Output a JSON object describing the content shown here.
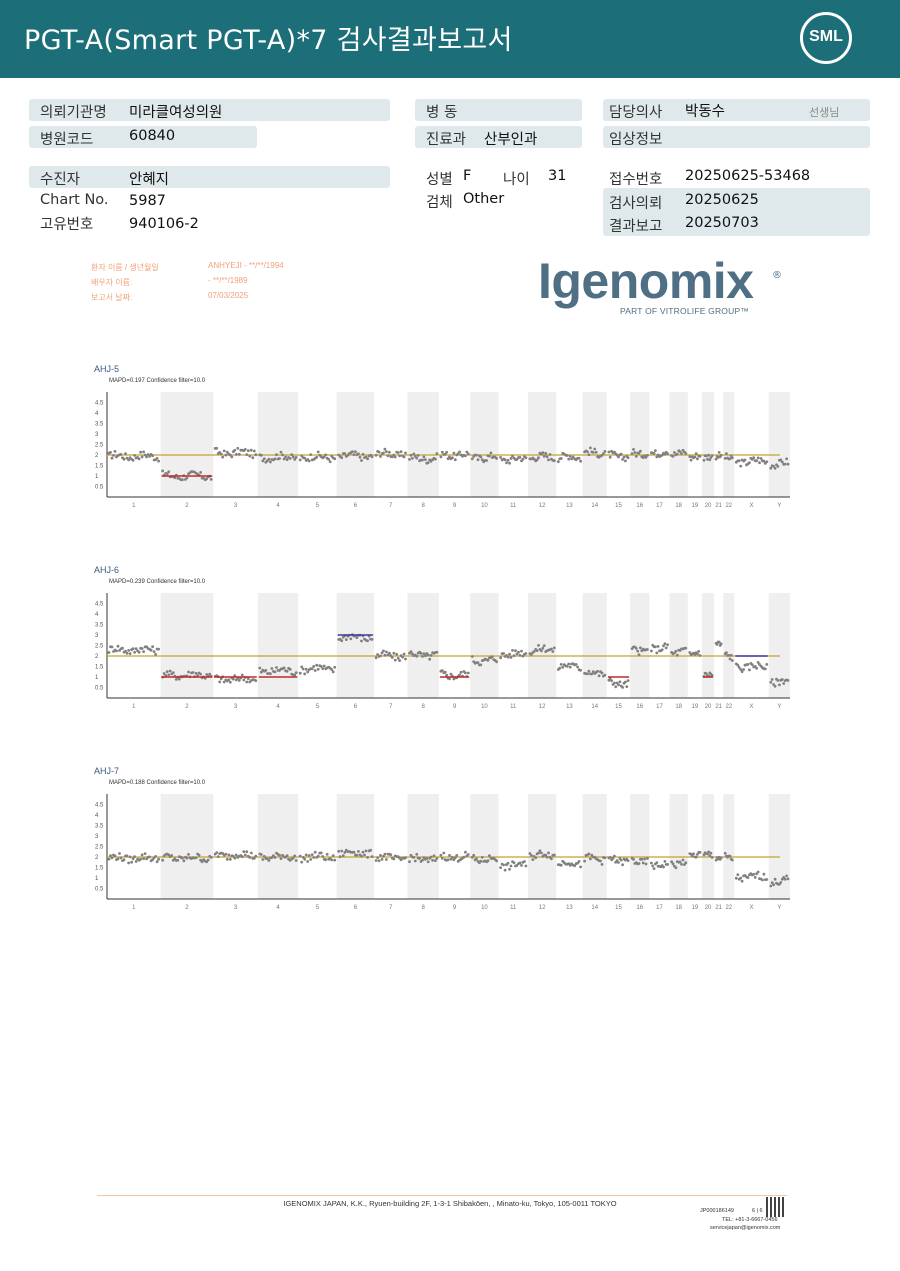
{
  "header": {
    "title": "PGT-A(Smart  PGT-A)*7 검사결과보고서",
    "logo": "SML"
  },
  "info": {
    "institution_label": "의뢰기관명",
    "institution": "미라클여성의원",
    "hospital_code_label": "병원코드",
    "hospital_code": "60840",
    "ward_label": "병   동",
    "ward": "",
    "department_label": "진료과",
    "department": "산부인과",
    "doctor_label": "담당의사",
    "doctor": "박동수",
    "doctor_suffix": "선생님",
    "clinical_label": "임상정보",
    "clinical": "",
    "patient_label": "수진자",
    "patient": "안혜지",
    "chart_no_label": "Chart No.",
    "chart_no": "5987",
    "unique_no_label": "고유번호",
    "unique_no": "940106-2",
    "sex_label": "성별",
    "sex": "F",
    "age_label": "나이",
    "age": "31",
    "specimen_label": "검체",
    "specimen": "Other",
    "receipt_label": "접수번호",
    "receipt": "20250625-53468",
    "request_label": "검사의뢰",
    "request": "20250625",
    "report_label": "결과보고",
    "report": "20250703"
  },
  "lab_info": {
    "patient_name_label": "환자 이름 / 생년월일",
    "patient_name": "ANHYEJI -  **/**/1994",
    "partner_label": "배우자 이름:",
    "partner": "-  **/**/1989",
    "report_date_label": "보고서 날짜:",
    "report_date": "07/03/2025"
  },
  "brand": {
    "name": "Igenomix",
    "reg": "®",
    "sub": "PART OF VITROLIFE GROUP™"
  },
  "colors": {
    "header": "#1c6f78",
    "box": "#dfe9ec",
    "baseline": "#c8a030",
    "loss": "#c0282c",
    "gain": "#3a3aa0",
    "points": "#808080"
  },
  "chart_data": [
    {
      "type": "scatter",
      "title": "AHJ-5",
      "subtitle": "MAPD=0.197 Confidence filter=10.0",
      "ylim": [
        0,
        5
      ],
      "yticks": [
        "0.5",
        "1",
        "1.5",
        "2",
        "2.5",
        "3",
        "3.5",
        "4",
        "4.5"
      ],
      "categories": [
        "1",
        "2",
        "3",
        "4",
        "5",
        "6",
        "7",
        "8",
        "9",
        "10",
        "11",
        "12",
        "13",
        "14",
        "15",
        "16",
        "17",
        "18",
        "19",
        "20",
        "21",
        "22",
        "X",
        "Y"
      ],
      "baseline": 2,
      "segments": [
        [
          1.95,
          2
        ],
        [
          1,
          1
        ],
        [
          2.1,
          2
        ],
        [
          1.9,
          2
        ],
        [
          1.9,
          2
        ],
        [
          1.95,
          2
        ],
        [
          2.05,
          2
        ],
        [
          1.85,
          2
        ],
        [
          2.0,
          2
        ],
        [
          1.9,
          2
        ],
        [
          1.8,
          2
        ],
        [
          1.9,
          2
        ],
        [
          1.9,
          2
        ],
        [
          2.1,
          2
        ],
        [
          1.95,
          2
        ],
        [
          2.1,
          2
        ],
        [
          2.15,
          2
        ],
        [
          2.1,
          2
        ],
        [
          1.9,
          2
        ],
        [
          1.85,
          2
        ],
        [
          1.9,
          2
        ],
        [
          1.85,
          2
        ],
        [
          1.7,
          2
        ],
        [
          1.6,
          2
        ]
      ],
      "highlights": [
        {
          "chromosome": "2",
          "value": 1,
          "kind": "loss"
        }
      ]
    },
    {
      "type": "scatter",
      "title": "AHJ-6",
      "subtitle": "MAPD=0.239 Confidence filter=10.0",
      "ylim": [
        0,
        5
      ],
      "yticks": [
        "0.5",
        "1",
        "1.5",
        "2",
        "2.5",
        "3",
        "3.5",
        "4",
        "4.5"
      ],
      "categories": [
        "1",
        "2",
        "3",
        "4",
        "5",
        "6",
        "7",
        "8",
        "9",
        "10",
        "11",
        "12",
        "13",
        "14",
        "15",
        "16",
        "17",
        "18",
        "19",
        "20",
        "21",
        "22",
        "X",
        "Y"
      ],
      "baseline": 2,
      "segments": [
        [
          2.3,
          2
        ],
        [
          1.1,
          1
        ],
        [
          0.9,
          1
        ],
        [
          1.3,
          1
        ],
        [
          1.4,
          1
        ],
        [
          2.9,
          3
        ],
        [
          2.0,
          2
        ],
        [
          2.05,
          2
        ],
        [
          1.1,
          1
        ],
        [
          1.8,
          2
        ],
        [
          2.1,
          2
        ],
        [
          2.3,
          2
        ],
        [
          1.5,
          2
        ],
        [
          1.2,
          2
        ],
        [
          0.7,
          1
        ],
        [
          2.3,
          2
        ],
        [
          2.4,
          2
        ],
        [
          2.2,
          2
        ],
        [
          2.1,
          2
        ],
        [
          1.05,
          1
        ],
        [
          2.5,
          2
        ],
        [
          2.0,
          2
        ],
        [
          1.5,
          2
        ],
        [
          0.8,
          1
        ]
      ],
      "highlights": [
        {
          "chromosome": "2",
          "value": 1,
          "kind": "loss"
        },
        {
          "chromosome": "3",
          "value": 1,
          "kind": "loss"
        },
        {
          "chromosome": "4",
          "value": 1,
          "kind": "loss"
        },
        {
          "chromosome": "6",
          "value": 3,
          "kind": "gain"
        },
        {
          "chromosome": "9",
          "value": 1,
          "kind": "loss"
        },
        {
          "chromosome": "15",
          "value": 1,
          "kind": "loss"
        },
        {
          "chromosome": "20",
          "value": 1,
          "kind": "loss"
        },
        {
          "chromosome": "X",
          "value": 2,
          "kind": "gain"
        }
      ]
    },
    {
      "type": "scatter",
      "title": "AHJ-7",
      "subtitle": "MAPD=0.188 Confidence filter=10.0",
      "ylim": [
        0,
        5
      ],
      "yticks": [
        "0.5",
        "1",
        "1.5",
        "2",
        "2.5",
        "3",
        "3.5",
        "4",
        "4.5"
      ],
      "categories": [
        "1",
        "2",
        "3",
        "4",
        "5",
        "6",
        "7",
        "8",
        "9",
        "10",
        "11",
        "12",
        "13",
        "14",
        "15",
        "16",
        "17",
        "18",
        "19",
        "20",
        "21",
        "22",
        "X",
        "Y"
      ],
      "baseline": 2,
      "segments": [
        [
          1.95,
          2
        ],
        [
          1.95,
          2
        ],
        [
          2.1,
          2
        ],
        [
          2.0,
          2
        ],
        [
          2.0,
          2
        ],
        [
          2.2,
          2
        ],
        [
          1.95,
          2
        ],
        [
          1.9,
          2
        ],
        [
          2.0,
          2
        ],
        [
          1.9,
          2
        ],
        [
          1.6,
          2
        ],
        [
          2.1,
          2
        ],
        [
          1.7,
          2
        ],
        [
          1.9,
          2
        ],
        [
          1.85,
          2
        ],
        [
          1.8,
          2
        ],
        [
          1.65,
          2
        ],
        [
          1.7,
          2
        ],
        [
          2.05,
          2
        ],
        [
          2.05,
          2
        ],
        [
          1.9,
          2
        ],
        [
          1.95,
          2
        ],
        [
          1.05,
          1
        ],
        [
          0.85,
          1
        ]
      ],
      "highlights": []
    }
  ],
  "footer": {
    "address": "IGENOMIX JAPAN, K.K., Ryuen-building 2F, 1-3-1 Shibakōen, , Minato-ku, Tokyo, 105-0011 TOKYO",
    "doc_no": "JP000186149",
    "page": "6 | 6",
    "phone": "TEL: +81-3-6667-0456",
    "email": "servicejapan@igenomix.com"
  }
}
